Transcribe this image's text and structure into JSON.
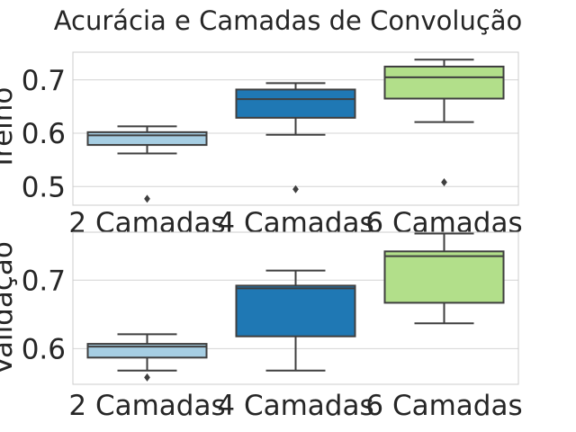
{
  "chart_data": {
    "title": "Acurácia e Camadas de Convolução",
    "type": "box",
    "grid": true,
    "colors": {
      "2 Camadas": "#a6cee3",
      "4 Camadas": "#1f78b4",
      "6 Camadas": "#b2df8a",
      "edge": "#3f3f3f",
      "grid": "#d4d4d4",
      "frame": "#cccccc"
    },
    "panels": [
      {
        "ylabel": "Treino",
        "ylim": [
          0.465,
          0.752
        ],
        "yticks": [
          0.5,
          0.6,
          0.7
        ],
        "yticklabels": [
          "0.5",
          "0.6",
          "0.7"
        ],
        "categories": [
          "2 Camadas",
          "4 Camadas",
          "6 Camadas"
        ],
        "series": [
          {
            "category": "2 Camadas",
            "whisker_low": 0.562,
            "q1": 0.578,
            "median": 0.596,
            "q3": 0.602,
            "whisker_high": 0.613,
            "outliers": [
              0.477
            ]
          },
          {
            "category": "4 Camadas",
            "whisker_low": 0.597,
            "q1": 0.629,
            "median": 0.664,
            "q3": 0.682,
            "whisker_high": 0.694,
            "outliers": [
              0.495
            ]
          },
          {
            "category": "6 Camadas",
            "whisker_low": 0.621,
            "q1": 0.665,
            "median": 0.705,
            "q3": 0.725,
            "whisker_high": 0.738,
            "outliers": [
              0.508
            ]
          }
        ]
      },
      {
        "ylabel": "Validação",
        "ylim": [
          0.548,
          0.77
        ],
        "yticks": [
          0.6,
          0.7
        ],
        "yticklabels": [
          "0.6",
          "0.7"
        ],
        "categories": [
          "2 Camadas",
          "4 Camadas",
          "6 Camadas"
        ],
        "series": [
          {
            "category": "2 Camadas",
            "whisker_low": 0.568,
            "q1": 0.587,
            "median": 0.603,
            "q3": 0.607,
            "whisker_high": 0.621,
            "outliers": [
              0.558
            ]
          },
          {
            "category": "4 Camadas",
            "whisker_low": 0.568,
            "q1": 0.618,
            "median": 0.688,
            "q3": 0.692,
            "whisker_high": 0.714,
            "outliers": []
          },
          {
            "category": "6 Camadas",
            "whisker_low": 0.637,
            "q1": 0.667,
            "median": 0.735,
            "q3": 0.742,
            "whisker_high": 0.768,
            "outliers": []
          }
        ]
      }
    ]
  }
}
